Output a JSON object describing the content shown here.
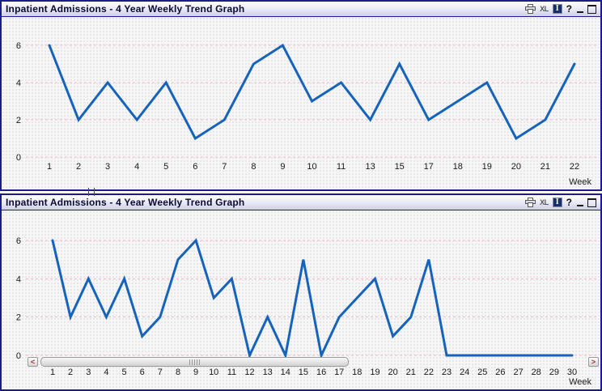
{
  "caption_icons": {
    "xl_label": "XL",
    "fast_change_glyph": "I",
    "help_label": "?"
  },
  "panels": [
    {
      "title": "Inpatient Admissions - 4 Year Weekly Trend Graph",
      "chart_data": {
        "type": "line",
        "categories": [
          "1",
          "2",
          "3",
          "4",
          "5",
          "6",
          "7",
          "8",
          "9",
          "10",
          "11",
          "13",
          "15",
          "17",
          "18",
          "19",
          "20",
          "21",
          "22"
        ],
        "values": [
          6,
          2,
          4,
          2,
          4,
          1,
          2,
          5,
          6,
          3,
          4,
          2,
          5,
          2,
          3,
          4,
          1,
          2,
          5
        ],
        "title": "",
        "xlabel": "Week",
        "ylabel": "",
        "yticks": [
          0,
          2,
          4,
          6
        ],
        "ylim": [
          0,
          6.9
        ],
        "grid": "horizontal-dashed",
        "legend": "none",
        "line_color": "#1563bb",
        "gridline_color": "#f0b9cd",
        "label_color": "#1a1a1a"
      }
    },
    {
      "title": "Inpatient Admissions - 4 Year Weekly Trend Graph",
      "chart_data": {
        "type": "line",
        "categories": [
          "1",
          "2",
          "3",
          "4",
          "5",
          "6",
          "7",
          "8",
          "9",
          "10",
          "11",
          "12",
          "13",
          "14",
          "15",
          "16",
          "17",
          "18",
          "19",
          "20",
          "21",
          "22",
          "23",
          "24",
          "25",
          "26",
          "27",
          "28",
          "29",
          "30"
        ],
        "values": [
          6,
          2,
          4,
          2,
          4,
          1,
          2,
          5,
          6,
          3,
          4,
          0,
          2,
          0,
          5,
          0,
          2,
          3,
          4,
          1,
          2,
          5,
          0,
          0,
          0,
          0,
          0,
          0,
          0,
          0
        ],
        "title": "",
        "xlabel": "Week",
        "ylabel": "",
        "yticks": [
          0,
          2,
          4,
          6
        ],
        "ylim": [
          0,
          6.9
        ],
        "grid": "horizontal-dashed",
        "legend": "none",
        "line_color": "#1563bb",
        "gridline_color": "#f0b9cd",
        "label_color": "#1a1a1a"
      },
      "scrollbar": {
        "left_arrow": "<",
        "right_arrow": ">"
      }
    }
  ]
}
